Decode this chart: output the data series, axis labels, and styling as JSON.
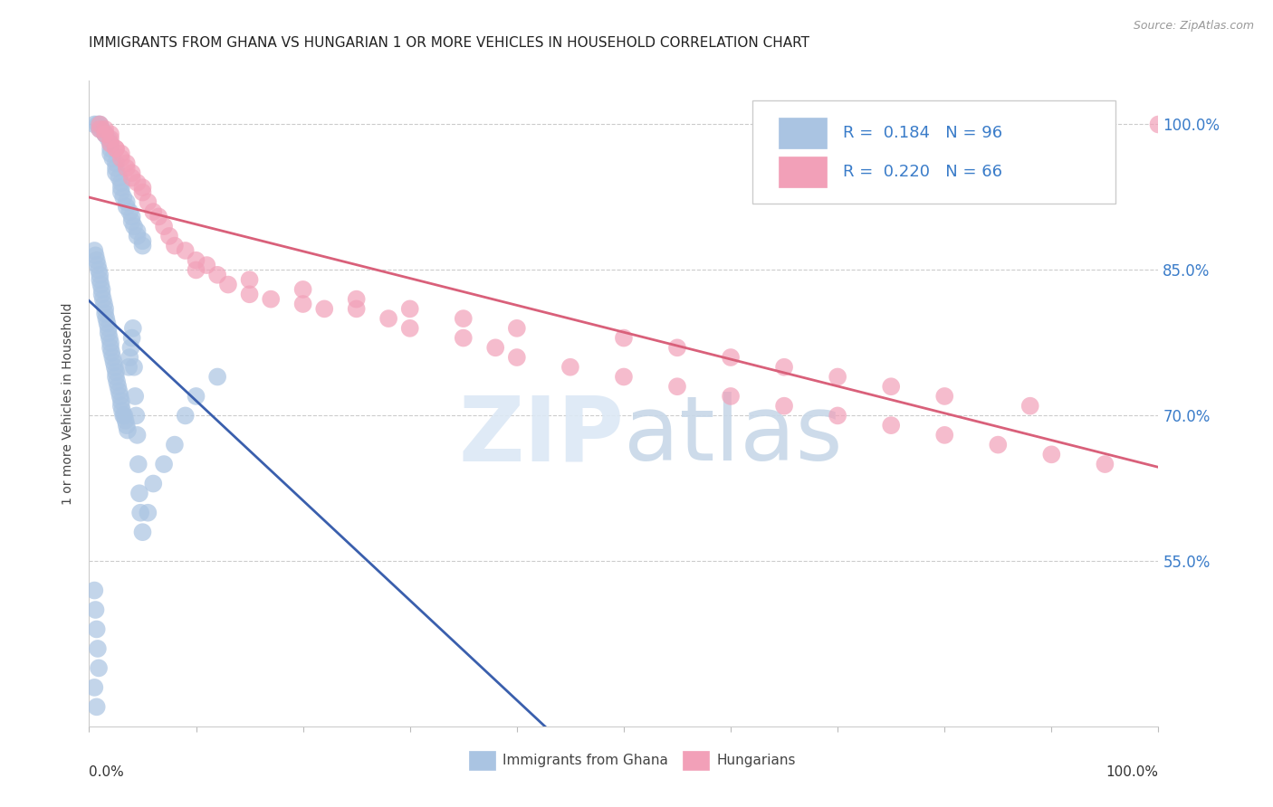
{
  "title": "IMMIGRANTS FROM GHANA VS HUNGARIAN 1 OR MORE VEHICLES IN HOUSEHOLD CORRELATION CHART",
  "source": "Source: ZipAtlas.com",
  "ylabel": "1 or more Vehicles in Household",
  "xlim": [
    0.0,
    1.0
  ],
  "ylim": [
    0.38,
    1.045
  ],
  "yticks": [
    0.55,
    0.7,
    0.85,
    1.0
  ],
  "ytick_labels": [
    "55.0%",
    "70.0%",
    "85.0%",
    "100.0%"
  ],
  "ghana_R": 0.184,
  "ghana_N": 96,
  "hungarian_R": 0.22,
  "hungarian_N": 66,
  "ghana_color": "#aac4e2",
  "hungarian_color": "#f2a0b8",
  "ghana_line_color": "#3a5fad",
  "hungarian_line_color": "#d9607a",
  "watermark": "ZIPatlas",
  "ghana_x": [
    0.005,
    0.008,
    0.01,
    0.01,
    0.012,
    0.015,
    0.015,
    0.018,
    0.02,
    0.02,
    0.02,
    0.022,
    0.025,
    0.025,
    0.025,
    0.028,
    0.03,
    0.03,
    0.03,
    0.032,
    0.035,
    0.035,
    0.038,
    0.04,
    0.04,
    0.042,
    0.045,
    0.045,
    0.05,
    0.05,
    0.005,
    0.006,
    0.007,
    0.008,
    0.009,
    0.01,
    0.01,
    0.011,
    0.012,
    0.012,
    0.013,
    0.014,
    0.015,
    0.015,
    0.016,
    0.017,
    0.018,
    0.018,
    0.019,
    0.02,
    0.02,
    0.021,
    0.022,
    0.023,
    0.024,
    0.025,
    0.025,
    0.026,
    0.027,
    0.028,
    0.029,
    0.03,
    0.03,
    0.031,
    0.032,
    0.033,
    0.034,
    0.035,
    0.036,
    0.037,
    0.038,
    0.039,
    0.04,
    0.041,
    0.042,
    0.043,
    0.044,
    0.045,
    0.046,
    0.047,
    0.048,
    0.05,
    0.055,
    0.06,
    0.07,
    0.08,
    0.09,
    0.1,
    0.12,
    0.005,
    0.006,
    0.007,
    0.008,
    0.009,
    0.005,
    0.007
  ],
  "ghana_y": [
    1.0,
    1.0,
    1.0,
    0.995,
    0.995,
    0.99,
    0.99,
    0.985,
    0.98,
    0.975,
    0.97,
    0.965,
    0.96,
    0.955,
    0.95,
    0.945,
    0.94,
    0.935,
    0.93,
    0.925,
    0.92,
    0.915,
    0.91,
    0.905,
    0.9,
    0.895,
    0.89,
    0.885,
    0.88,
    0.875,
    0.87,
    0.865,
    0.86,
    0.855,
    0.85,
    0.845,
    0.84,
    0.835,
    0.83,
    0.825,
    0.82,
    0.815,
    0.81,
    0.805,
    0.8,
    0.795,
    0.79,
    0.785,
    0.78,
    0.775,
    0.77,
    0.765,
    0.76,
    0.755,
    0.75,
    0.745,
    0.74,
    0.735,
    0.73,
    0.725,
    0.72,
    0.715,
    0.71,
    0.705,
    0.7,
    0.7,
    0.695,
    0.69,
    0.685,
    0.75,
    0.76,
    0.77,
    0.78,
    0.79,
    0.75,
    0.72,
    0.7,
    0.68,
    0.65,
    0.62,
    0.6,
    0.58,
    0.6,
    0.63,
    0.65,
    0.67,
    0.7,
    0.72,
    0.74,
    0.52,
    0.5,
    0.48,
    0.46,
    0.44,
    0.42,
    0.4
  ],
  "hungarian_x": [
    0.01,
    0.01,
    0.015,
    0.015,
    0.02,
    0.02,
    0.02,
    0.025,
    0.025,
    0.03,
    0.03,
    0.035,
    0.035,
    0.04,
    0.04,
    0.045,
    0.05,
    0.05,
    0.055,
    0.06,
    0.065,
    0.07,
    0.075,
    0.08,
    0.09,
    0.1,
    0.11,
    0.12,
    0.13,
    0.15,
    0.17,
    0.2,
    0.22,
    0.25,
    0.28,
    0.3,
    0.35,
    0.38,
    0.4,
    0.45,
    0.5,
    0.55,
    0.6,
    0.65,
    0.7,
    0.75,
    0.8,
    0.85,
    0.9,
    0.95,
    1.0,
    0.1,
    0.15,
    0.2,
    0.25,
    0.3,
    0.35,
    0.4,
    0.5,
    0.55,
    0.6,
    0.65,
    0.7,
    0.75,
    0.8,
    0.88
  ],
  "hungarian_y": [
    1.0,
    0.995,
    0.995,
    0.99,
    0.99,
    0.985,
    0.98,
    0.975,
    0.975,
    0.97,
    0.965,
    0.96,
    0.955,
    0.95,
    0.945,
    0.94,
    0.935,
    0.93,
    0.92,
    0.91,
    0.905,
    0.895,
    0.885,
    0.875,
    0.87,
    0.86,
    0.855,
    0.845,
    0.835,
    0.825,
    0.82,
    0.815,
    0.81,
    0.81,
    0.8,
    0.79,
    0.78,
    0.77,
    0.76,
    0.75,
    0.74,
    0.73,
    0.72,
    0.71,
    0.7,
    0.69,
    0.68,
    0.67,
    0.66,
    0.65,
    1.0,
    0.85,
    0.84,
    0.83,
    0.82,
    0.81,
    0.8,
    0.79,
    0.78,
    0.77,
    0.76,
    0.75,
    0.74,
    0.73,
    0.72,
    0.71
  ]
}
